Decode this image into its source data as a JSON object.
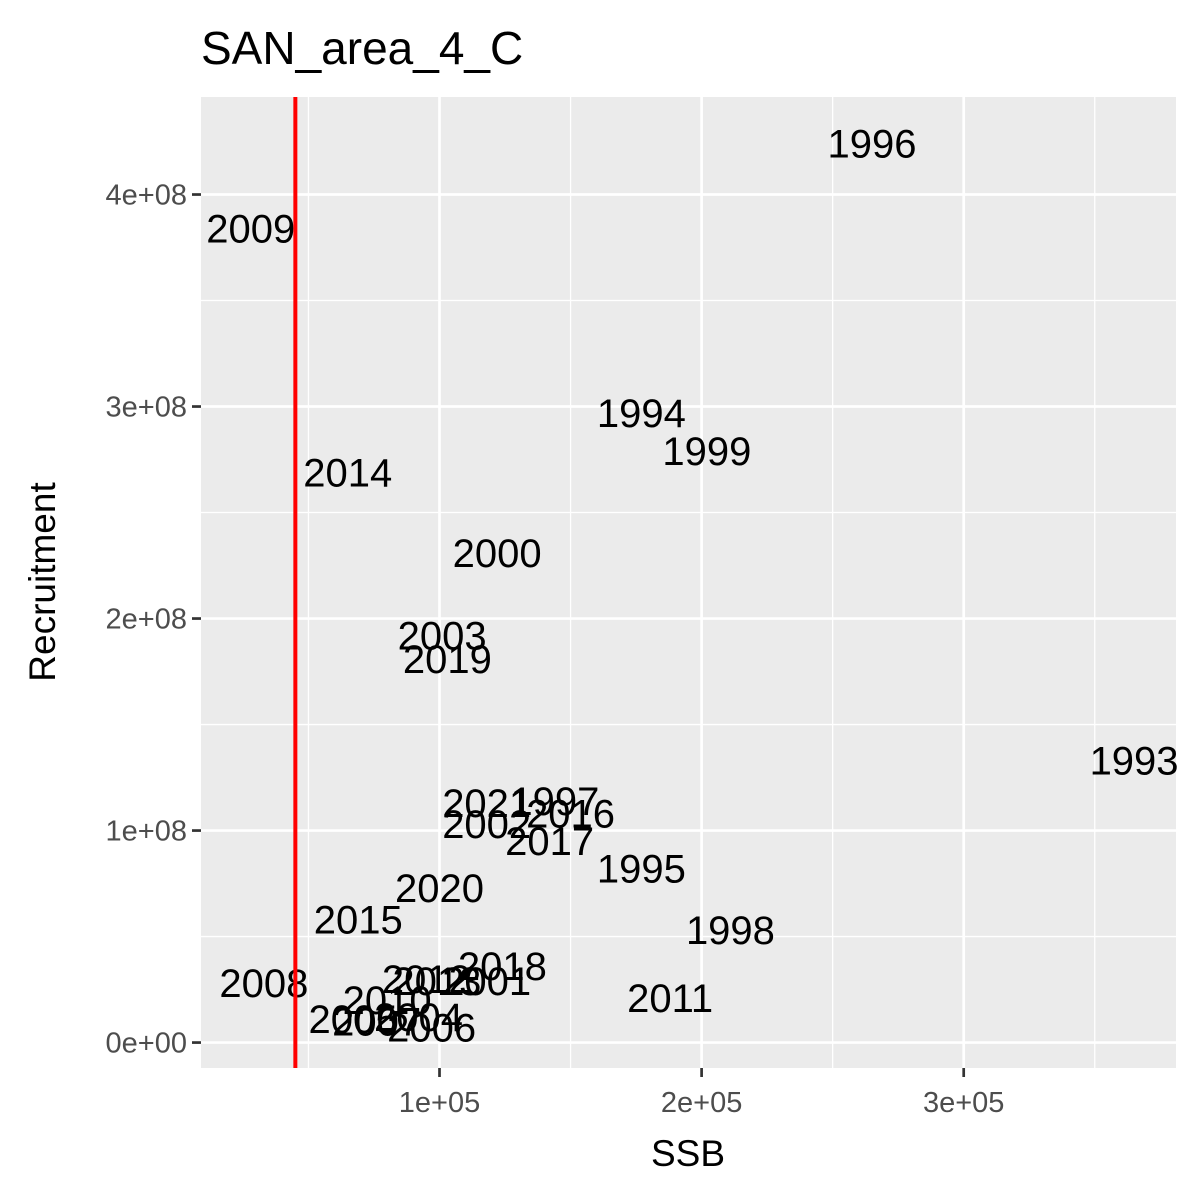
{
  "chart_data": {
    "type": "scatter",
    "title": "SAN_area_4_C",
    "xlabel": "SSB",
    "ylabel": "Recruitment",
    "xlim": [
      9000,
      381000
    ],
    "ylim": [
      -12000000,
      446000000
    ],
    "x_ticks": [
      {
        "value": 100000,
        "label": "1e+05"
      },
      {
        "value": 200000,
        "label": "2e+05"
      },
      {
        "value": 300000,
        "label": "3e+05"
      }
    ],
    "y_ticks": [
      {
        "value": 0,
        "label": "0e+00"
      },
      {
        "value": 100000000,
        "label": "1e+08"
      },
      {
        "value": 200000000,
        "label": "2e+08"
      },
      {
        "value": 300000000,
        "label": "3e+08"
      },
      {
        "value": 400000000,
        "label": "4e+08"
      }
    ],
    "x_minor": [
      50000,
      150000,
      250000,
      350000
    ],
    "y_minor": [
      50000000,
      150000000,
      250000000,
      350000000
    ],
    "grid": true,
    "reference_line": {
      "orientation": "vertical",
      "x": 45000,
      "color": "#ff0000"
    },
    "points": [
      {
        "label": "1993",
        "x": 365000,
        "y": 133000000
      },
      {
        "label": "1994",
        "x": 177000,
        "y": 297000000
      },
      {
        "label": "1995",
        "x": 177000,
        "y": 82000000
      },
      {
        "label": "1996",
        "x": 265000,
        "y": 424000000
      },
      {
        "label": "1997",
        "x": 144000,
        "y": 114000000
      },
      {
        "label": "1998",
        "x": 211000,
        "y": 53000000
      },
      {
        "label": "1999",
        "x": 202000,
        "y": 279000000
      },
      {
        "label": "2000",
        "x": 122000,
        "y": 231000000
      },
      {
        "label": "2001",
        "x": 118000,
        "y": 29000000
      },
      {
        "label": "2002",
        "x": 118000,
        "y": 103000000
      },
      {
        "label": "2003",
        "x": 101000,
        "y": 192000000
      },
      {
        "label": "2004",
        "x": 92000,
        "y": 12000000
      },
      {
        "label": "2005",
        "x": 67000,
        "y": 11000000
      },
      {
        "label": "2006",
        "x": 97000,
        "y": 7000000
      },
      {
        "label": "2007",
        "x": 76000,
        "y": 10000000
      },
      {
        "label": "2008",
        "x": 33000,
        "y": 28000000
      },
      {
        "label": "2009",
        "x": 28000,
        "y": 384000000
      },
      {
        "label": "2010",
        "x": 80000,
        "y": 20000000
      },
      {
        "label": "2011",
        "x": 188000,
        "y": 21000000
      },
      {
        "label": "2012",
        "x": 95000,
        "y": 30000000
      },
      {
        "label": "2013",
        "x": 99000,
        "y": 29000000
      },
      {
        "label": "2014",
        "x": 65000,
        "y": 269000000
      },
      {
        "label": "2015",
        "x": 69000,
        "y": 58000000
      },
      {
        "label": "2016",
        "x": 150000,
        "y": 108000000
      },
      {
        "label": "2017",
        "x": 142000,
        "y": 95000000
      },
      {
        "label": "2018",
        "x": 124000,
        "y": 36000000
      },
      {
        "label": "2019",
        "x": 103000,
        "y": 181000000
      },
      {
        "label": "2020",
        "x": 100000,
        "y": 73000000
      },
      {
        "label": "2021",
        "x": 118000,
        "y": 113000000
      }
    ]
  }
}
